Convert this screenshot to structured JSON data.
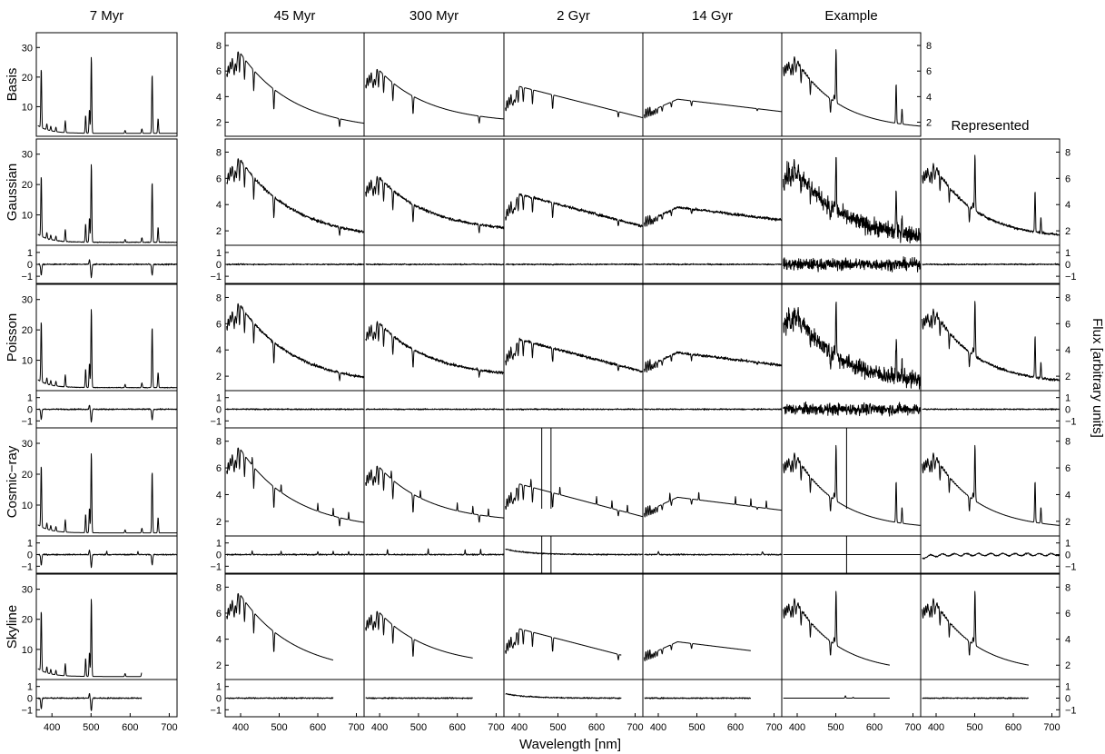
{
  "chart_data": {
    "type": "line",
    "column_titles": [
      "7 Myr",
      "45 Myr",
      "300 Myr",
      "2 Gyr",
      "14 Gyr",
      "Example",
      "Represented"
    ],
    "row_titles": [
      "Basis",
      "Gaussian",
      "Poisson",
      "Cosmic−ray",
      "Skyline"
    ],
    "xlabel": "Wavelength [nm]",
    "ylabel": "Flux [arbitrary units]",
    "xlim": [
      360,
      720
    ],
    "x_ticks": [
      "400",
      "500",
      "600",
      "700"
    ],
    "flux_ticks_7myr": [
      "10",
      "20",
      "30"
    ],
    "flux_ticks": [
      "2",
      "4",
      "6",
      "8"
    ],
    "residual_ticks": [
      "1",
      "0",
      "−1"
    ],
    "ylim_7myr": [
      0,
      35
    ],
    "ylim_flux": [
      0.9,
      9
    ],
    "ylim_residual": [
      -1.6,
      1.6
    ],
    "legend": "none",
    "grid": false
  }
}
